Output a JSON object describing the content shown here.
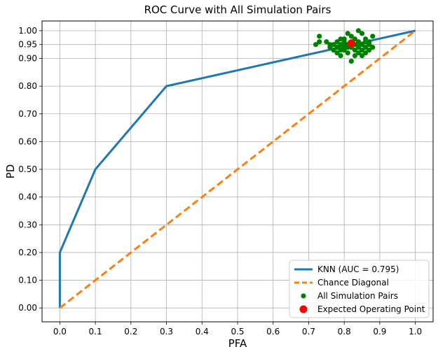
{
  "chart_data": {
    "type": "line",
    "title": "ROC Curve with All Simulation Pairs",
    "xlabel": "PFA",
    "ylabel": "PD",
    "xlim": [
      -0.05,
      1.05
    ],
    "ylim": [
      -0.05,
      1.035
    ],
    "x_ticks": [
      "0.0",
      "0.1",
      "0.2",
      "0.3",
      "0.4",
      "0.5",
      "0.6",
      "0.7",
      "0.8",
      "0.9",
      "1.0"
    ],
    "y_ticks": [
      "0.00",
      "0.10",
      "0.20",
      "0.30",
      "0.40",
      "0.50",
      "0.60",
      "0.70",
      "0.80",
      "0.90",
      "0.95",
      "1.00"
    ],
    "grid": true,
    "legend_position": "lower-right",
    "series": [
      {
        "name": "KNN (AUC = 0.795)",
        "kind": "line",
        "color": "#1f77b4",
        "points": [
          [
            0.0,
            0.0
          ],
          [
            0.0,
            0.2
          ],
          [
            0.1,
            0.5
          ],
          [
            0.3,
            0.8
          ],
          [
            1.0,
            1.0
          ]
        ]
      },
      {
        "name": "Chance Diagonal",
        "kind": "dashed-line",
        "color": "#ff7f0e",
        "points": [
          [
            0.0,
            0.0
          ],
          [
            1.0,
            1.0
          ]
        ]
      },
      {
        "name": "All Simulation Pairs",
        "kind": "scatter",
        "color": "#008000",
        "points": [
          [
            0.73,
            0.98
          ],
          [
            0.72,
            0.95
          ],
          [
            0.73,
            0.96
          ],
          [
            0.75,
            0.96
          ],
          [
            0.76,
            0.95
          ],
          [
            0.76,
            0.94
          ],
          [
            0.77,
            0.93
          ],
          [
            0.77,
            0.95
          ],
          [
            0.78,
            0.92
          ],
          [
            0.78,
            0.96
          ],
          [
            0.78,
            0.94
          ],
          [
            0.79,
            0.97
          ],
          [
            0.79,
            0.95
          ],
          [
            0.79,
            0.93
          ],
          [
            0.79,
            0.91
          ],
          [
            0.8,
            0.96
          ],
          [
            0.8,
            0.94
          ],
          [
            0.8,
            0.93
          ],
          [
            0.8,
            0.97
          ],
          [
            0.81,
            0.95
          ],
          [
            0.81,
            0.99
          ],
          [
            0.81,
            0.92
          ],
          [
            0.81,
            0.94
          ],
          [
            0.82,
            0.96
          ],
          [
            0.82,
            0.98
          ],
          [
            0.82,
            0.94
          ],
          [
            0.82,
            0.89
          ],
          [
            0.83,
            0.95
          ],
          [
            0.83,
            0.93
          ],
          [
            0.83,
            0.97
          ],
          [
            0.84,
            0.92
          ],
          [
            0.84,
            0.94
          ],
          [
            0.84,
            1.0
          ],
          [
            0.84,
            0.96
          ],
          [
            0.85,
            0.99
          ],
          [
            0.85,
            0.95
          ],
          [
            0.85,
            0.93
          ],
          [
            0.85,
            0.91
          ],
          [
            0.86,
            0.97
          ],
          [
            0.86,
            0.94
          ],
          [
            0.86,
            0.92
          ],
          [
            0.87,
            0.95
          ],
          [
            0.87,
            0.93
          ],
          [
            0.87,
            0.96
          ],
          [
            0.88,
            0.98
          ],
          [
            0.88,
            0.94
          ],
          [
            0.86,
            0.96
          ],
          [
            0.84,
            0.95
          ],
          [
            0.83,
            0.91
          ],
          [
            0.8,
            0.95
          ]
        ]
      },
      {
        "name": "Expected Operating Point",
        "kind": "marker",
        "color": "#ff0000",
        "points": [
          [
            0.82,
            0.955
          ]
        ]
      }
    ]
  }
}
